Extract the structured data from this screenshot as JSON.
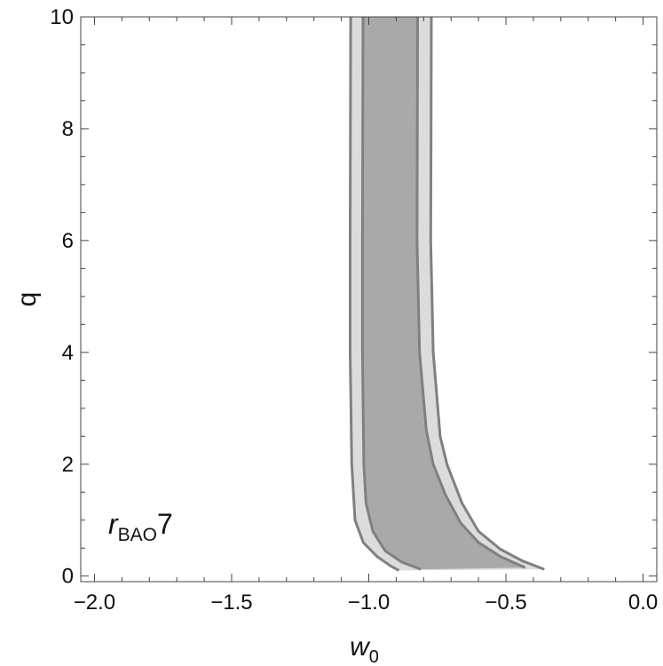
{
  "chart_data": {
    "type": "area",
    "title": "",
    "xlabel": {
      "base": "w",
      "sub": "0"
    },
    "ylabel": "q",
    "xlim": [
      -2.05,
      0.05
    ],
    "ylim": [
      -0.1,
      10.0
    ],
    "x_ticks": [
      -2.0,
      -1.5,
      -1.0,
      -0.5,
      0.0
    ],
    "x_tick_labels": [
      "−2.0",
      "−1.5",
      "−1.0",
      "−0.5",
      "0.0"
    ],
    "y_ticks": [
      0,
      2,
      4,
      6,
      8,
      10
    ],
    "y_tick_labels": [
      "0",
      "2",
      "4",
      "6",
      "8",
      "10"
    ],
    "annotation": {
      "base": "r",
      "sub": "BAO",
      "suffix": "7"
    },
    "grid": false,
    "regions": [
      {
        "level": "2-sigma",
        "fill": "#dcdcdc",
        "stroke": "#808080",
        "left_boundary": [
          [
            -1.066,
            10.0
          ],
          [
            -1.067,
            8.0
          ],
          [
            -1.068,
            6.0
          ],
          [
            -1.068,
            4.0
          ],
          [
            -1.062,
            2.0
          ],
          [
            -1.05,
            1.0
          ],
          [
            -1.02,
            0.6
          ],
          [
            -0.97,
            0.35
          ],
          [
            -0.92,
            0.18
          ],
          [
            -0.89,
            0.1
          ]
        ],
        "right_boundary": [
          [
            -0.772,
            10.0
          ],
          [
            -0.773,
            8.0
          ],
          [
            -0.774,
            6.0
          ],
          [
            -0.765,
            4.0
          ],
          [
            -0.74,
            2.5
          ],
          [
            -0.715,
            2.0
          ],
          [
            -0.66,
            1.3
          ],
          [
            -0.6,
            0.8
          ],
          [
            -0.52,
            0.48
          ],
          [
            -0.44,
            0.27
          ],
          [
            -0.36,
            0.12
          ]
        ]
      },
      {
        "level": "1-sigma",
        "fill": "#a9a9a9",
        "stroke": "#808080",
        "left_boundary": [
          [
            -1.021,
            10.0
          ],
          [
            -1.022,
            8.0
          ],
          [
            -1.023,
            6.0
          ],
          [
            -1.023,
            4.0
          ],
          [
            -1.018,
            2.0
          ],
          [
            -1.01,
            1.3
          ],
          [
            -0.985,
            0.8
          ],
          [
            -0.94,
            0.45
          ],
          [
            -0.88,
            0.25
          ],
          [
            -0.81,
            0.12
          ]
        ],
        "right_boundary": [
          [
            -0.822,
            10.0
          ],
          [
            -0.823,
            8.0
          ],
          [
            -0.824,
            6.0
          ],
          [
            -0.815,
            4.0
          ],
          [
            -0.79,
            2.6
          ],
          [
            -0.765,
            2.0
          ],
          [
            -0.72,
            1.45
          ],
          [
            -0.665,
            0.95
          ],
          [
            -0.6,
            0.6
          ],
          [
            -0.52,
            0.35
          ],
          [
            -0.43,
            0.15
          ]
        ]
      }
    ],
    "bottom_cut_q": 0.12
  }
}
